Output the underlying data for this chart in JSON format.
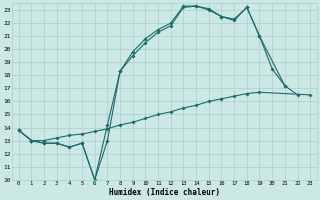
{
  "xlabel": "Humidex (Indice chaleur)",
  "background_color": "#cce8e4",
  "grid_color": "#aacfcc",
  "line_color": "#1a6b6b",
  "xlim": [
    -0.5,
    23.5
  ],
  "ylim": [
    10,
    23.5
  ],
  "xticks": [
    0,
    1,
    2,
    3,
    4,
    5,
    6,
    7,
    8,
    9,
    10,
    11,
    12,
    13,
    14,
    15,
    16,
    17,
    18,
    19,
    20,
    21,
    22,
    23
  ],
  "yticks": [
    10,
    11,
    12,
    13,
    14,
    15,
    16,
    17,
    18,
    19,
    20,
    21,
    22,
    23
  ],
  "series": [
    {
      "x": [
        0,
        1,
        2,
        3,
        4,
        5,
        6,
        7,
        8,
        9,
        10,
        11,
        12,
        13,
        14,
        15,
        16,
        17,
        18,
        19,
        20,
        21,
        22
      ],
      "y": [
        13.8,
        13.0,
        12.8,
        12.8,
        12.5,
        12.8,
        10.0,
        13.0,
        18.3,
        19.8,
        20.8,
        21.5,
        22.0,
        23.3,
        23.3,
        23.1,
        22.5,
        22.3,
        23.2,
        21.0,
        null,
        17.2,
        16.5
      ]
    },
    {
      "x": [
        0,
        1,
        2,
        3,
        4,
        5,
        6,
        7,
        8,
        9,
        10,
        11,
        12,
        13,
        14,
        15,
        16,
        17,
        18,
        19,
        20,
        21
      ],
      "y": [
        13.8,
        13.0,
        12.8,
        12.8,
        12.5,
        12.8,
        10.0,
        14.2,
        18.3,
        19.5,
        20.5,
        21.3,
        21.8,
        23.2,
        23.3,
        23.0,
        22.5,
        22.2,
        23.2,
        21.0,
        18.5,
        17.2
      ]
    },
    {
      "x": [
        0,
        1,
        2,
        3,
        4,
        5,
        6,
        7,
        8,
        9,
        10,
        11,
        12,
        13,
        14,
        15,
        16,
        17,
        18,
        19,
        20,
        21,
        22,
        23
      ],
      "y": [
        13.8,
        13.0,
        13.0,
        13.2,
        13.4,
        13.5,
        13.7,
        13.9,
        14.2,
        14.4,
        14.7,
        15.0,
        15.2,
        15.5,
        15.7,
        16.0,
        16.2,
        16.4,
        16.6,
        16.7,
        null,
        null,
        null,
        16.5
      ]
    }
  ]
}
